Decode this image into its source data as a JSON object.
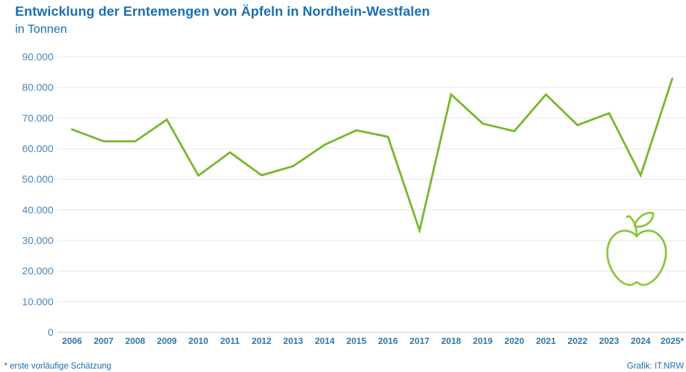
{
  "header": {
    "title": "Entwicklung der Erntemengen von Äpfeln in Nordhein-Westfalen",
    "subtitle": "in Tonnen"
  },
  "footer": {
    "note": "* erste vorläufige Schätzung",
    "credit": "Grafik: IT.NRW"
  },
  "colors": {
    "title_blue": "#1a6fb2",
    "ylabel_blue": "#4d87ba",
    "xlabel_blue": "#2e78ab",
    "line_green": "#76b82a",
    "apple_green": "#8dc63f",
    "grid": "#eaeaea",
    "grid_zero": "#cfcfcf",
    "background": "#ffffff"
  },
  "chart_data": {
    "type": "line",
    "title": "Entwicklung der Erntemengen von Äpfeln in Nordhein-Westfalen",
    "subtitle": "in Tonnen",
    "xlabel": "",
    "ylabel": "Tonnen",
    "categories": [
      "2006",
      "2007",
      "2008",
      "2009",
      "2010",
      "2011",
      "2012",
      "2013",
      "2014",
      "2015",
      "2016",
      "2017",
      "2018",
      "2019",
      "2020",
      "2021",
      "2022",
      "2023",
      "2024",
      "2025*"
    ],
    "values": [
      66300,
      62400,
      62400,
      69500,
      51200,
      58800,
      51300,
      54300,
      61300,
      66000,
      63900,
      33300,
      77700,
      68200,
      65700,
      77700,
      67700,
      71600,
      51300,
      82900
    ],
    "ylim": [
      0,
      90000
    ],
    "yticks": [
      0,
      10000,
      20000,
      30000,
      40000,
      50000,
      60000,
      70000,
      80000,
      90000
    ],
    "ytick_labels": [
      "0",
      "10.000",
      "20.000",
      "30.000",
      "40.000",
      "50.000",
      "60.000",
      "70.000",
      "80.000",
      "90.000"
    ],
    "grid": "horizontal",
    "legend": "none",
    "annotation_icon": "apple-outline",
    "footnote": "* erste vorläufige Schätzung",
    "credit": "Grafik: IT.NRW"
  }
}
